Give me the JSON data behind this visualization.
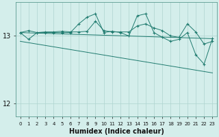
{
  "xlabel": "Humidex (Indice chaleur)",
  "bg_color": "#d4eeeb",
  "grid_color": "#aed4cf",
  "line_color": "#1e7a6e",
  "xlim": [
    -0.5,
    23.5
  ],
  "ylim": [
    11.8,
    13.5
  ],
  "yticks": [
    12,
    13
  ],
  "xticks": [
    0,
    1,
    2,
    3,
    4,
    5,
    6,
    7,
    8,
    9,
    10,
    11,
    12,
    13,
    14,
    15,
    16,
    17,
    18,
    19,
    20,
    21,
    22,
    23
  ],
  "series1_x": [
    0,
    1,
    2,
    3,
    4,
    5,
    6,
    7,
    8,
    9,
    10,
    11,
    12,
    13,
    14,
    15,
    16,
    17,
    18,
    19,
    20,
    21,
    22,
    23
  ],
  "series1_y": [
    13.05,
    13.08,
    13.05,
    13.06,
    13.06,
    13.07,
    13.06,
    13.06,
    13.07,
    13.22,
    13.08,
    13.06,
    13.06,
    13.06,
    13.15,
    13.18,
    13.12,
    13.08,
    13.0,
    12.98,
    13.18,
    13.06,
    12.88,
    12.92
  ],
  "series2_x": [
    0,
    1,
    2,
    3,
    4,
    5,
    6,
    7,
    8,
    9,
    10,
    11,
    12,
    13,
    14,
    15,
    16,
    17,
    18,
    19,
    20,
    21,
    22,
    23
  ],
  "series2_y": [
    13.05,
    12.95,
    13.05,
    13.05,
    13.05,
    13.05,
    13.05,
    13.18,
    13.28,
    13.33,
    13.05,
    13.07,
    13.05,
    13.0,
    13.3,
    13.33,
    13.05,
    12.98,
    12.92,
    12.95,
    13.05,
    12.72,
    12.58,
    12.96
  ],
  "series3_x": [
    0,
    23
  ],
  "series3_y": [
    13.05,
    12.96
  ],
  "series4_x": [
    0,
    23
  ],
  "series4_y": [
    12.92,
    12.45
  ]
}
